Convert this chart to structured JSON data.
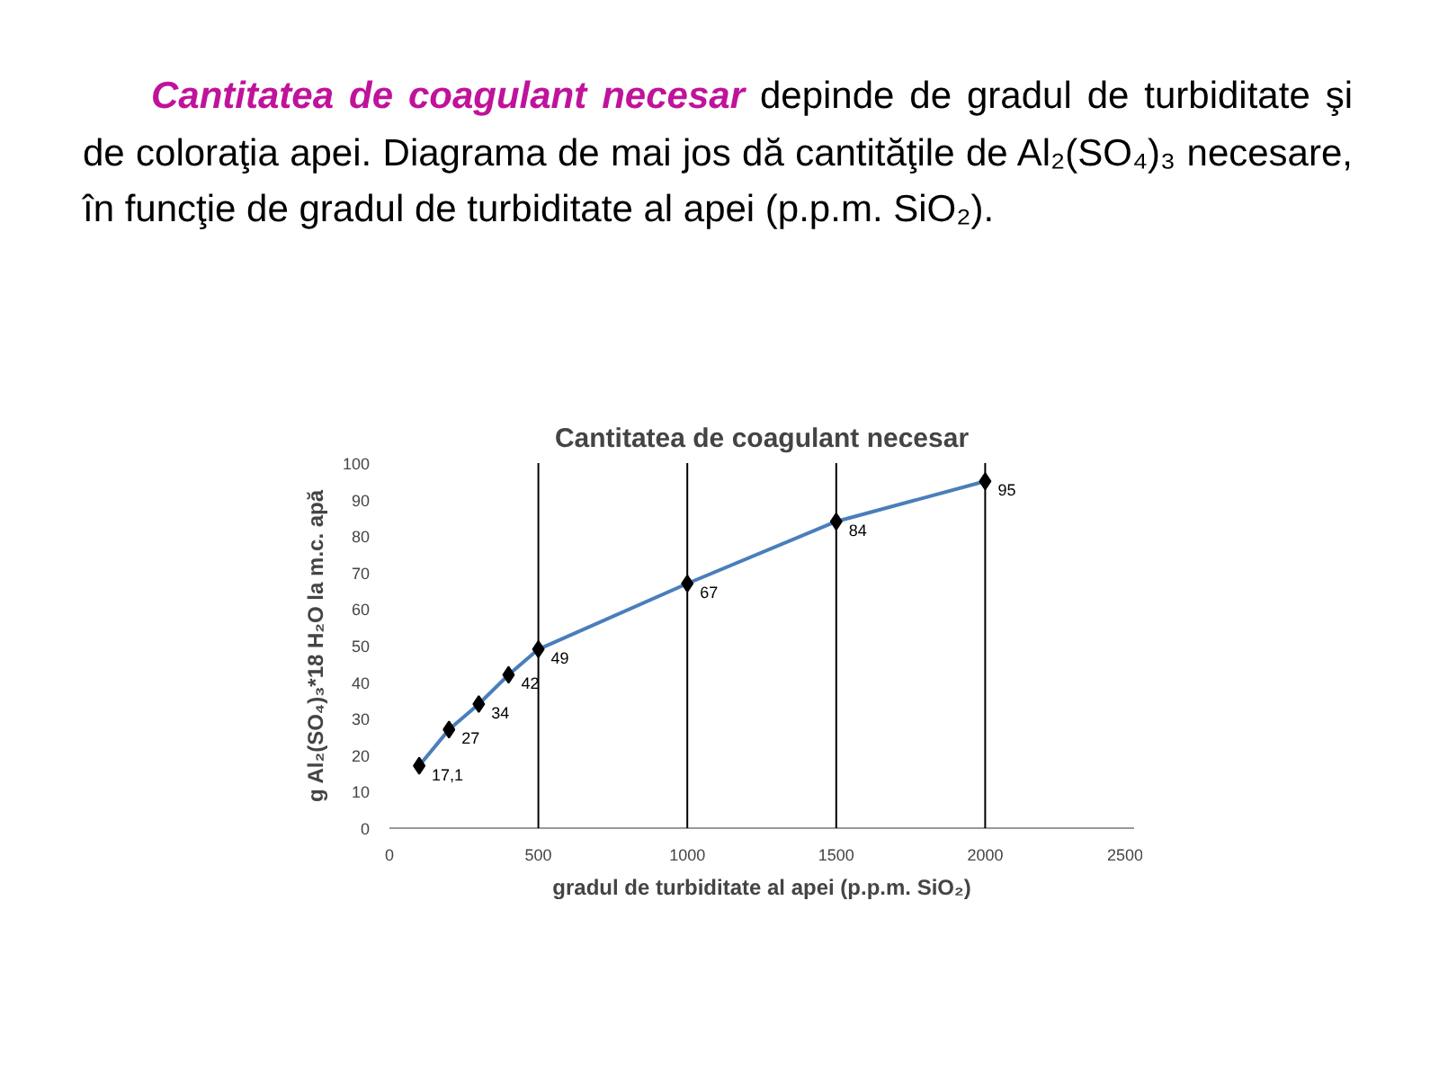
{
  "chart_data": {
    "type": "line",
    "title": "Cantitatea de coagulant necesar",
    "annotations": [
      "Cantitatea de coagulant necesar",
      "depinde de gradul de turbiditate şi de coloraţia apei. Diagrama de mai jos dă cantităţile de Al₂(SO₄)₃ necesare, în funcţie de gradul de turbiditate al apei (p.p.m. SiO₂)."
    ],
    "xlabel": "gradul de turbiditate al apei (p.p.m. SiO₂)",
    "ylabel": "g Al₂(SO₄)₃*18 H₂O la m.c. apă",
    "x": [
      100,
      200,
      300,
      400,
      500,
      1000,
      1500,
      2000
    ],
    "series": [
      {
        "color": "#4a7ebb",
        "values": [
          17.1,
          27,
          34,
          42,
          49,
          67,
          84,
          95
        ],
        "value_labels": [
          "17,1",
          "27",
          "34",
          "42",
          "49",
          "67",
          "84",
          "95"
        ]
      }
    ],
    "xlim": [
      0,
      2500
    ],
    "xticks": [
      0,
      500,
      1000,
      1500,
      2000,
      2500
    ],
    "ylim": [
      0,
      100
    ],
    "yticks": [
      0,
      10,
      20,
      30,
      40,
      50,
      60,
      70,
      80,
      90,
      100
    ],
    "ref_lines": [
      {
        "axis": "x",
        "value": 500,
        "color": "#000000"
      },
      {
        "axis": "x",
        "value": 1000,
        "color": "#000000"
      },
      {
        "axis": "x",
        "value": 1500,
        "color": "#000000"
      },
      {
        "axis": "x",
        "value": 2000,
        "color": "#000000"
      }
    ],
    "marker": "diamond",
    "grid": false
  }
}
